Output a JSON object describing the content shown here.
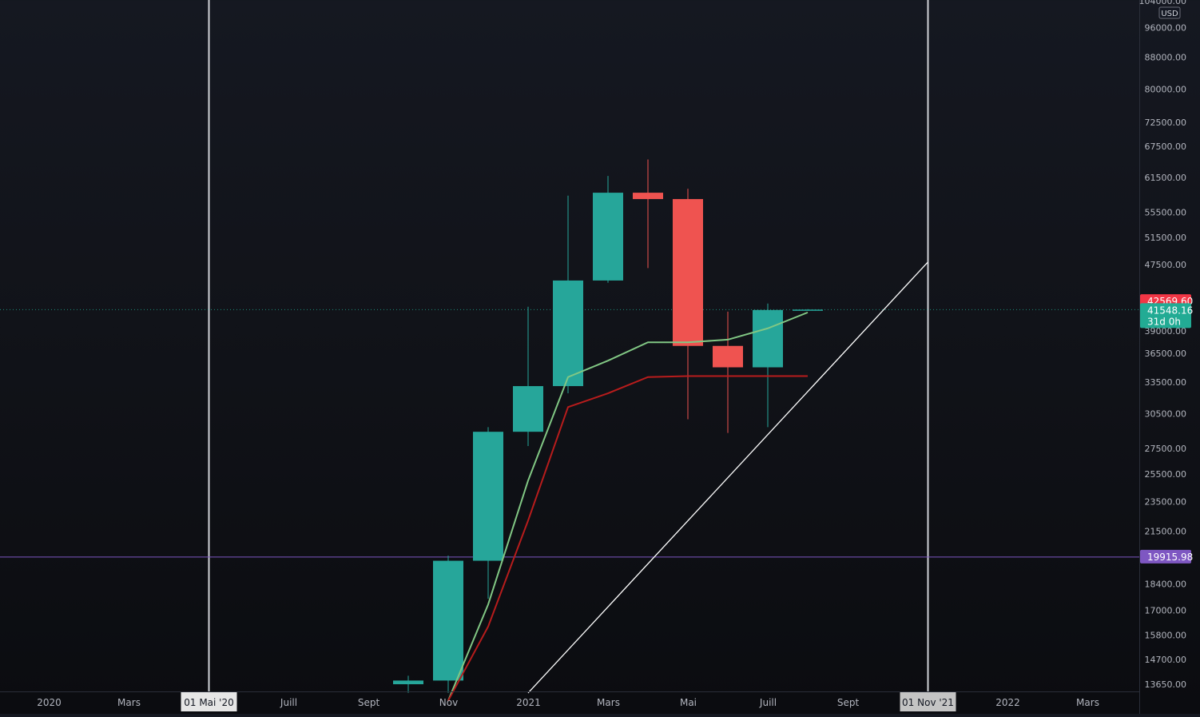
{
  "chart_data": {
    "type": "candlestick",
    "currency": "USD",
    "y_scale": "log",
    "y_ticks": [
      {
        "value": 104000,
        "label": "104000.00"
      },
      {
        "value": 96000,
        "label": "96000.00"
      },
      {
        "value": 88000,
        "label": "88000.00"
      },
      {
        "value": 80000,
        "label": "80000.00"
      },
      {
        "value": 72500,
        "label": "72500.00"
      },
      {
        "value": 67500,
        "label": "67500.00"
      },
      {
        "value": 61500,
        "label": "61500.00"
      },
      {
        "value": 55500,
        "label": "55500.00"
      },
      {
        "value": 51500,
        "label": "51500.00"
      },
      {
        "value": 47500,
        "label": "47500.00"
      },
      {
        "value": 39000,
        "label": "39000.00"
      },
      {
        "value": 36500,
        "label": "36500.00"
      },
      {
        "value": 33500,
        "label": "33500.00"
      },
      {
        "value": 30500,
        "label": "30500.00"
      },
      {
        "value": 27500,
        "label": "27500.00"
      },
      {
        "value": 25500,
        "label": "25500.00"
      },
      {
        "value": 23500,
        "label": "23500.00"
      },
      {
        "value": 21500,
        "label": "21500.00"
      },
      {
        "value": 18400,
        "label": "18400.00"
      },
      {
        "value": 17000,
        "label": "17000.00"
      },
      {
        "value": 15800,
        "label": "15800.00"
      },
      {
        "value": 14700,
        "label": "14700.00"
      },
      {
        "value": 13650,
        "label": "13650.00"
      }
    ],
    "x_ticks": [
      {
        "date": "2020-01-01",
        "label": "2020"
      },
      {
        "date": "2020-03-01",
        "label": "Mars"
      },
      {
        "date": "2020-05-01",
        "label": "01 Mai '20",
        "highlight": true
      },
      {
        "date": "2020-07-01",
        "label": "Juill"
      },
      {
        "date": "2020-09-01",
        "label": "Sept"
      },
      {
        "date": "2020-11-01",
        "label": "Nov"
      },
      {
        "date": "2021-01-01",
        "label": "2021"
      },
      {
        "date": "2021-03-01",
        "label": "Mars"
      },
      {
        "date": "2021-05-01",
        "label": "Mai"
      },
      {
        "date": "2021-07-01",
        "label": "Juill"
      },
      {
        "date": "2021-09-01",
        "label": "Sept"
      },
      {
        "date": "2021-11-01",
        "label": "01 Nov '21",
        "highlight": true
      },
      {
        "date": "2022-01-01",
        "label": "2022"
      },
      {
        "date": "2022-03-01",
        "label": "Mars"
      }
    ],
    "candles": [
      {
        "date": "2020-10-01",
        "open": 13650,
        "high": 14000,
        "low": 13300,
        "close": 13800
      },
      {
        "date": "2020-11-01",
        "open": 13800,
        "high": 20000,
        "low": 13300,
        "close": 19700
      },
      {
        "date": "2020-12-01",
        "open": 19700,
        "high": 29300,
        "low": 17600,
        "close": 28900
      },
      {
        "date": "2021-01-01",
        "open": 28900,
        "high": 41900,
        "low": 27700,
        "close": 33100
      },
      {
        "date": "2021-02-01",
        "open": 33100,
        "high": 58300,
        "low": 32400,
        "close": 45300
      },
      {
        "date": "2021-03-01",
        "open": 45300,
        "high": 61800,
        "low": 45000,
        "close": 58800
      },
      {
        "date": "2021-04-01",
        "open": 58800,
        "high": 64900,
        "low": 47000,
        "close": 57700
      },
      {
        "date": "2021-05-01",
        "open": 57700,
        "high": 59500,
        "low": 30000,
        "close": 37300
      },
      {
        "date": "2021-06-01",
        "open": 37300,
        "high": 41300,
        "low": 28800,
        "close": 35000
      },
      {
        "date": "2021-07-01",
        "open": 35000,
        "high": 42300,
        "low": 29300,
        "close": 41500
      },
      {
        "date": "2021-08-01",
        "open": 41500,
        "high": 41600,
        "low": 41450,
        "close": 41548
      }
    ],
    "ma_lines": [
      {
        "color": "#81c784",
        "points": [
          {
            "date": "2020-11-01",
            "value": 13000
          },
          {
            "date": "2020-12-01",
            "value": 17300
          },
          {
            "date": "2021-01-01",
            "value": 25000
          },
          {
            "date": "2021-02-01",
            "value": 34000
          },
          {
            "date": "2021-03-01",
            "value": 35700
          },
          {
            "date": "2021-04-01",
            "value": 37700
          },
          {
            "date": "2021-05-01",
            "value": 37700
          },
          {
            "date": "2021-06-01",
            "value": 38000
          },
          {
            "date": "2021-07-01",
            "value": 39300
          },
          {
            "date": "2021-08-01",
            "value": 41200
          }
        ]
      },
      {
        "color": "#b71c1c",
        "points": [
          {
            "date": "2020-11-01",
            "value": 13000
          },
          {
            "date": "2020-12-01",
            "value": 16200
          },
          {
            "date": "2021-01-01",
            "value": 22200
          },
          {
            "date": "2021-02-01",
            "value": 31100
          },
          {
            "date": "2021-03-01",
            "value": 32400
          },
          {
            "date": "2021-04-01",
            "value": 34000
          },
          {
            "date": "2021-05-01",
            "value": 34100
          },
          {
            "date": "2021-06-01",
            "value": 34100
          },
          {
            "date": "2021-07-01",
            "value": 34100
          },
          {
            "date": "2021-08-01",
            "value": 34100
          }
        ]
      }
    ],
    "trend_line": {
      "start": {
        "date": "2021-01-01",
        "value": 13300
      },
      "end": {
        "date": "2021-11-01",
        "value": 47800
      },
      "color": "#ffffff"
    },
    "vertical_lines": [
      {
        "date": "2020-05-01"
      },
      {
        "date": "2021-11-01"
      }
    ],
    "horizontal_line": {
      "value": 19915.98,
      "label": "19915.98",
      "color": "#7e57c2"
    },
    "price_dotted_line": {
      "value": 41548.16
    },
    "price_labels": [
      {
        "value": 42569.6,
        "label": "42569.60",
        "color": "#f23645"
      },
      {
        "value": 41548.16,
        "label": "41548.16",
        "sublabel": "31d 0h",
        "color": "#22ab94"
      }
    ]
  }
}
